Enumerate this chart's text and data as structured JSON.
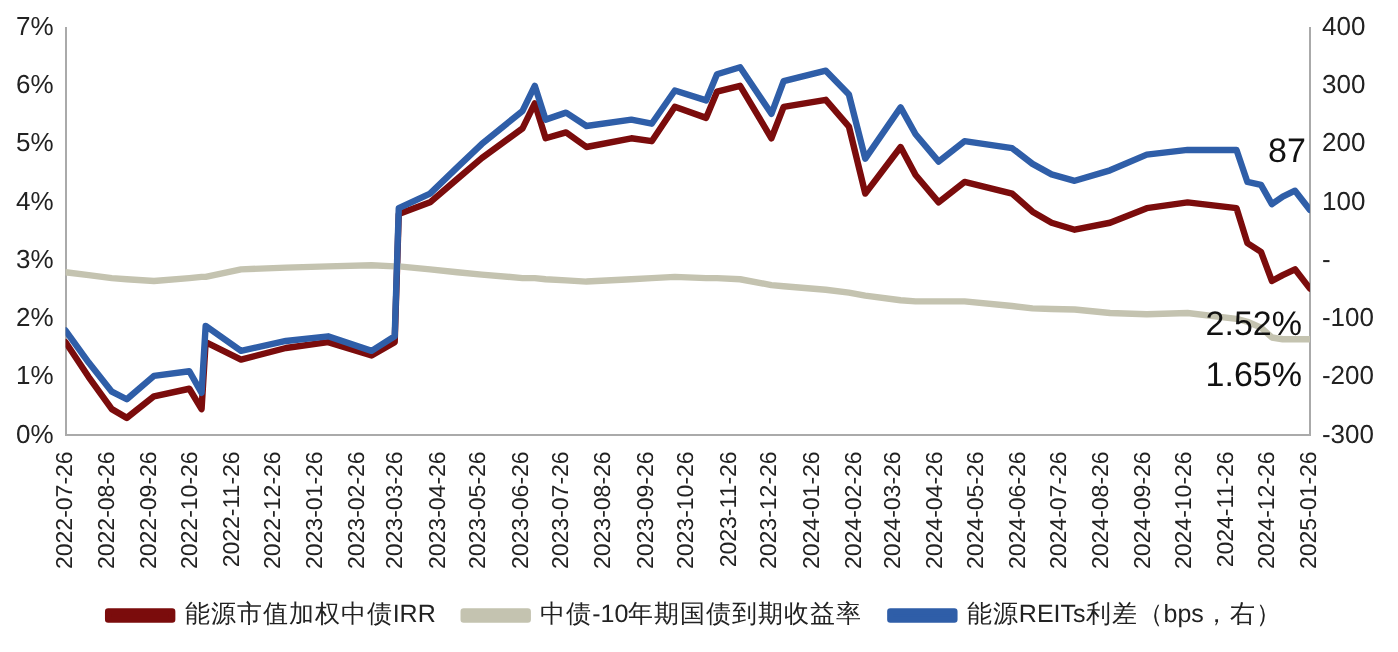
{
  "chart_data": {
    "type": "line",
    "x": [
      "2022-07-26",
      "2022-08-12",
      "2022-08-29",
      "2022-09-09",
      "2022-09-29",
      "2022-10-25",
      "2022-11-03",
      "2022-11-06",
      "2022-12-02",
      "2023-01-04",
      "2023-02-04",
      "2023-03-08",
      "2023-03-25",
      "2023-03-28",
      "2023-04-20",
      "2023-05-10",
      "2023-05-28",
      "2023-06-27",
      "2023-07-06",
      "2023-07-14",
      "2023-07-29",
      "2023-08-13",
      "2023-09-15",
      "2023-09-30",
      "2023-10-17",
      "2023-11-09",
      "2023-11-17",
      "2023-12-04",
      "2023-12-27",
      "2024-01-05",
      "2024-02-05",
      "2024-02-22",
      "2024-03-05",
      "2024-03-31",
      "2024-04-11",
      "2024-04-28",
      "2024-05-17",
      "2024-06-21",
      "2024-07-06",
      "2024-07-20",
      "2024-08-06",
      "2024-09-01",
      "2024-09-28",
      "2024-10-28",
      "2024-12-03",
      "2024-12-11",
      "2024-12-21",
      "2024-12-29",
      "2025-01-06",
      "2025-01-15",
      "2025-01-26"
    ],
    "series": [
      {
        "name": "能源市值加权中债IRR",
        "color": "#7b0c0c",
        "values": [
          1.6,
          1.0,
          0.45,
          0.3,
          0.67,
          0.8,
          0.45,
          1.6,
          1.3,
          1.5,
          1.6,
          1.37,
          1.6,
          3.8,
          4.0,
          4.4,
          4.76,
          5.27,
          5.7,
          5.1,
          5.2,
          4.95,
          5.1,
          5.05,
          5.64,
          5.45,
          5.9,
          6.0,
          5.1,
          5.64,
          5.76,
          5.3,
          4.15,
          4.95,
          4.47,
          4.0,
          4.35,
          4.15,
          3.84,
          3.65,
          3.53,
          3.65,
          3.9,
          4.0,
          3.9,
          3.3,
          3.15,
          2.65,
          2.75,
          2.85,
          2.52
        ],
        "value_labels": [
          null,
          null,
          null,
          null,
          null,
          null,
          null,
          null,
          null,
          null,
          null,
          null,
          null,
          null,
          null,
          null,
          null,
          null,
          null,
          null,
          null,
          null,
          null,
          null,
          null,
          null,
          null,
          null,
          null,
          null,
          null,
          null,
          null,
          null,
          null,
          null,
          null,
          null,
          null,
          null,
          null,
          null,
          null,
          null,
          null,
          null,
          null,
          null,
          null,
          null,
          "2.52%"
        ]
      },
      {
        "name": "中债-10年期国债到期收益率",
        "color": "#c4c3b0",
        "values": [
          2.8,
          2.75,
          2.7,
          2.68,
          2.65,
          2.7,
          2.72,
          2.72,
          2.85,
          2.88,
          2.9,
          2.92,
          2.9,
          2.9,
          2.85,
          2.8,
          2.76,
          2.7,
          2.7,
          2.68,
          2.66,
          2.64,
          2.68,
          2.7,
          2.72,
          2.7,
          2.7,
          2.68,
          2.58,
          2.56,
          2.5,
          2.45,
          2.4,
          2.32,
          2.3,
          2.3,
          2.3,
          2.22,
          2.18,
          2.17,
          2.16,
          2.1,
          2.08,
          2.1,
          2.0,
          1.95,
          1.85,
          1.68,
          1.65,
          1.65,
          1.65
        ],
        "value_labels": [
          null,
          null,
          null,
          null,
          null,
          null,
          null,
          null,
          null,
          null,
          null,
          null,
          null,
          null,
          null,
          null,
          null,
          null,
          null,
          null,
          null,
          null,
          null,
          null,
          null,
          null,
          null,
          null,
          null,
          null,
          null,
          null,
          null,
          null,
          null,
          null,
          null,
          null,
          null,
          null,
          null,
          null,
          null,
          null,
          null,
          null,
          null,
          null,
          null,
          null,
          "1.65%"
        ]
      },
      {
        "name": "能源REITs利差（bps，右）",
        "color": "#2f5ea8",
        "axis": "y2",
        "values": [
          -120,
          -175,
          -225,
          -238,
          -198,
          -190,
          -227,
          -112,
          -155,
          -138,
          -130,
          -155,
          -130,
          90,
          115,
          160,
          200,
          257,
          300,
          242,
          254,
          231,
          242,
          235,
          292,
          275,
          320,
          332,
          252,
          308,
          326,
          285,
          175,
          263,
          217,
          170,
          205,
          193,
          166,
          148,
          137,
          155,
          182,
          190,
          190,
          135,
          130,
          97,
          110,
          120,
          87
        ],
        "value_labels": [
          null,
          null,
          null,
          null,
          null,
          null,
          null,
          null,
          null,
          null,
          null,
          null,
          null,
          null,
          null,
          null,
          null,
          null,
          null,
          null,
          null,
          null,
          null,
          null,
          null,
          null,
          null,
          null,
          null,
          null,
          null,
          null,
          null,
          null,
          null,
          null,
          null,
          null,
          null,
          null,
          null,
          null,
          null,
          null,
          null,
          null,
          null,
          null,
          null,
          null,
          "87"
        ]
      }
    ],
    "xlim": [
      "2022-07-26",
      "2025-01-26"
    ],
    "xticks": [
      "2022-07-26",
      "2022-08-26",
      "2022-09-26",
      "2022-10-26",
      "2022-11-26",
      "2022-12-26",
      "2023-01-26",
      "2023-02-26",
      "2023-03-26",
      "2023-04-26",
      "2023-05-26",
      "2023-06-26",
      "2023-07-26",
      "2023-08-26",
      "2023-09-26",
      "2023-10-26",
      "2023-11-26",
      "2023-12-26",
      "2024-01-26",
      "2024-02-26",
      "2024-03-26",
      "2024-04-26",
      "2024-05-26",
      "2024-06-26",
      "2024-07-26",
      "2024-08-26",
      "2024-09-26",
      "2024-10-26",
      "2024-11-26",
      "2024-12-26",
      "2025-01-26"
    ],
    "ylim": [
      0,
      7
    ],
    "yticks": [
      {
        "value": 0,
        "label": "0%"
      },
      {
        "value": 1,
        "label": "1%"
      },
      {
        "value": 2,
        "label": "2%"
      },
      {
        "value": 3,
        "label": "3%"
      },
      {
        "value": 4,
        "label": "4%"
      },
      {
        "value": 5,
        "label": "5%"
      },
      {
        "value": 6,
        "label": "6%"
      },
      {
        "value": 7,
        "label": "7%"
      }
    ],
    "y2lim": [
      -300,
      400
    ],
    "y2ticks": [
      -300,
      -200,
      -100,
      {
        "value": 0,
        "label": "-"
      },
      100,
      200,
      300,
      400
    ],
    "grid": false,
    "legend": "bottom",
    "marker": "none",
    "line_style": "solid"
  }
}
